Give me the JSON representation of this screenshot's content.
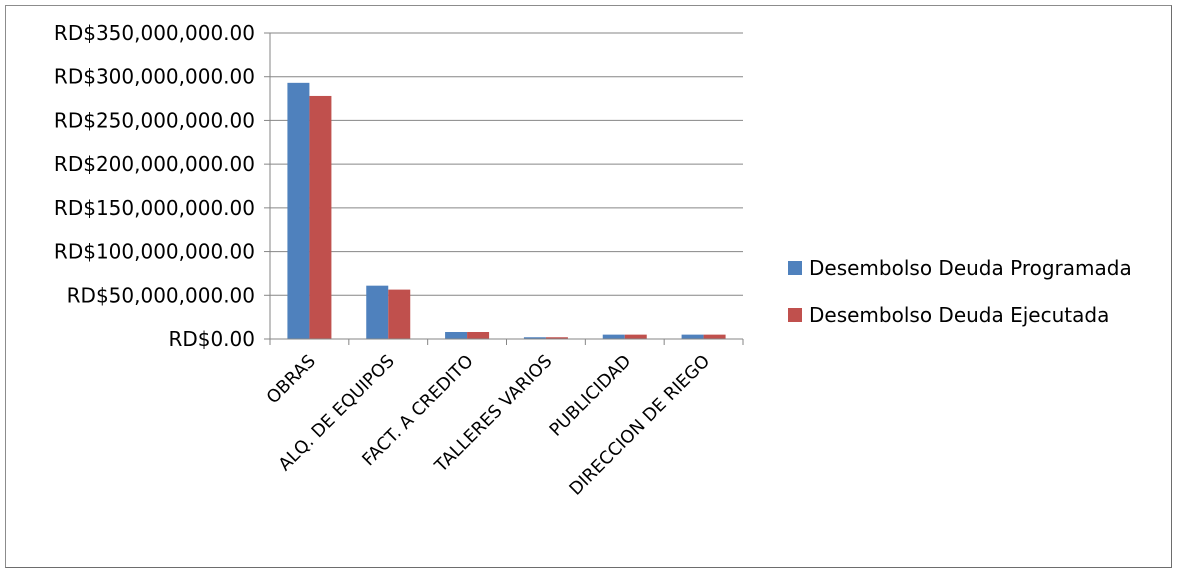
{
  "chart_data": {
    "type": "bar",
    "categories": [
      "OBRAS",
      "ALQ. DE EQUIPOS",
      "FACT. A CREDITO",
      "TALLERES VARIOS",
      "PUBLICIDAD",
      "DIRECCION DE RIEGO"
    ],
    "series": [
      {
        "name": "Desembolso Deuda Programada",
        "color": "#4f81bd",
        "values": [
          293000000,
          61000000,
          8000000,
          2000000,
          5000000,
          5000000
        ]
      },
      {
        "name": "Desembolso Deuda Ejecutada",
        "color": "#c0504d",
        "values": [
          278000000,
          56500000,
          8000000,
          2000000,
          5000000,
          5000000
        ]
      }
    ],
    "y_ticks": [
      "RD$0.00",
      "RD$50,000,000.00",
      "RD$100,000,000.00",
      "RD$150,000,000.00",
      "RD$200,000,000.00",
      "RD$250,000,000.00",
      "RD$300,000,000.00",
      "RD$350,000,000.00"
    ],
    "ylim": [
      0,
      350000000
    ],
    "grid": true,
    "legend_position": "right",
    "title": "",
    "xlabel": "",
    "ylabel": ""
  }
}
